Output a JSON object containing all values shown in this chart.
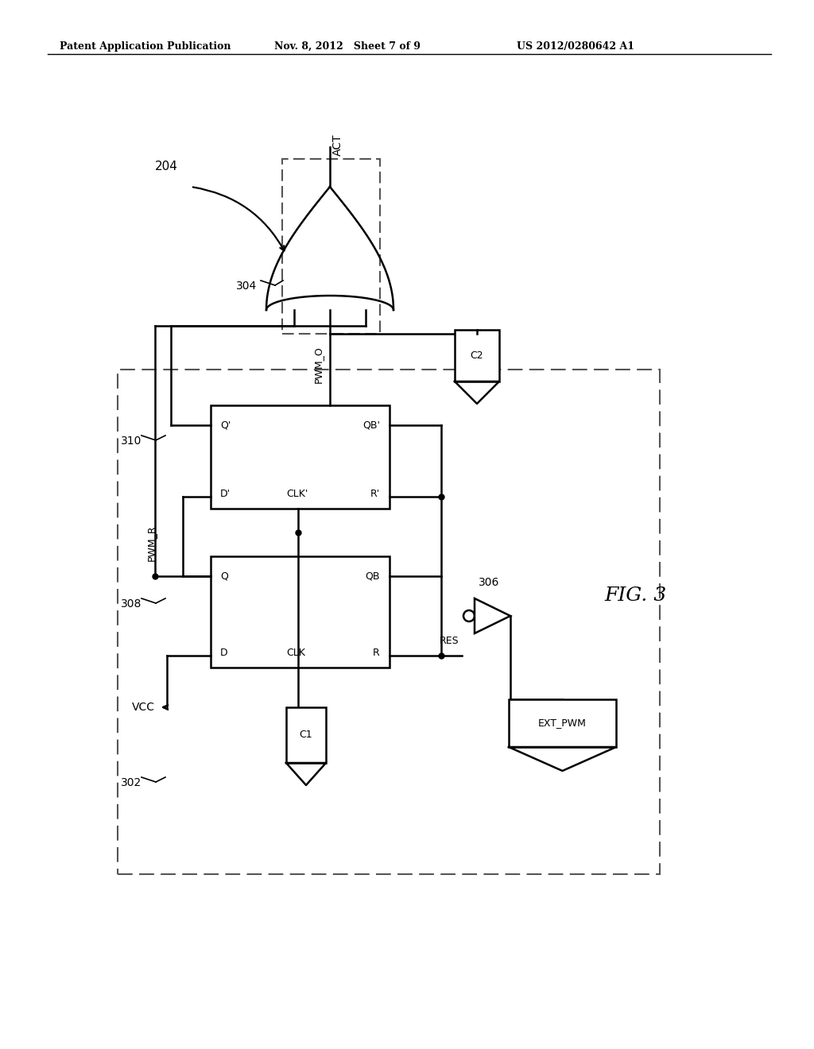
{
  "bg_color": "#ffffff",
  "line_color": "#000000",
  "header_left": "Patent Application Publication",
  "header_mid": "Nov. 8, 2012   Sheet 7 of 9",
  "header_right": "US 2012/0280642 A1",
  "fig_label": "FIG. 3",
  "label_204": "204",
  "label_302": "302",
  "label_304": "304",
  "label_306": "306",
  "label_308": "308",
  "label_310": "310",
  "signal_ACT": "ACT",
  "signal_VCC": "VCC",
  "signal_PWM_O": "PWM_O",
  "signal_PWM_R": "PWM_R",
  "signal_RES": "RES",
  "signal_C1": "C1",
  "signal_C2": "C2",
  "signal_EXT_PWM": "EXT_PWM"
}
